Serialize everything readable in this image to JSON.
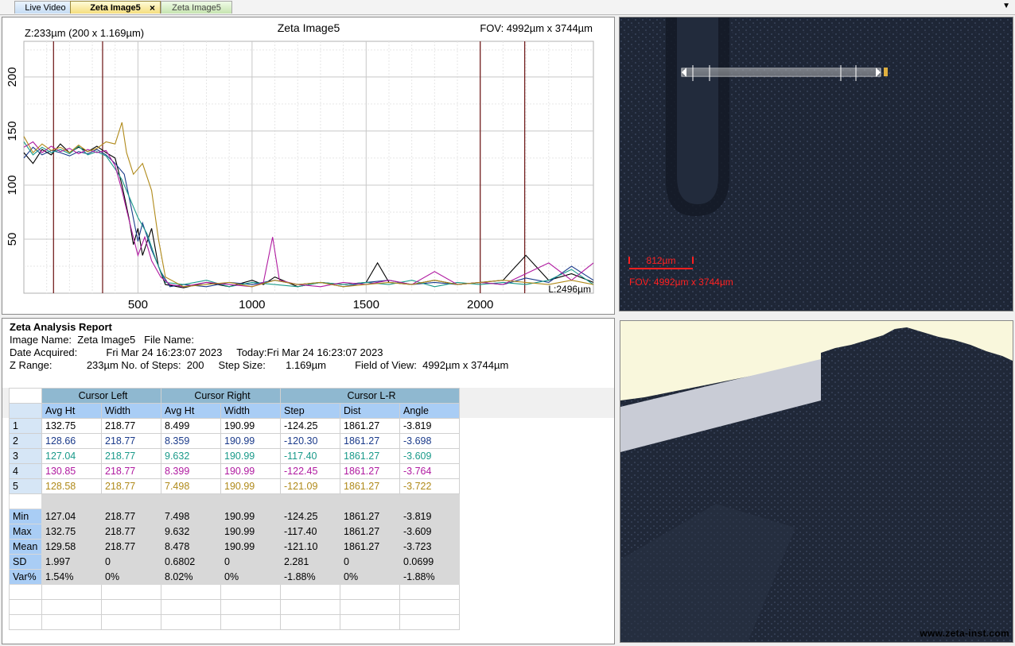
{
  "tabs": [
    {
      "label": "Live Video"
    },
    {
      "label": "Zeta Image5",
      "active": true
    },
    {
      "label": "Zeta Image5"
    }
  ],
  "tab_close_glyph": "×",
  "dropdown_glyph": "▼",
  "profile": {
    "title": "Zeta Image5",
    "zinfo": "Z:233µm (200 x 1.169µm)",
    "fov": "FOV: 4992µm x 3744µm",
    "length_label": "L:2496µm",
    "x_ticks": [
      "500",
      "1000",
      "1500",
      "2000"
    ],
    "y_ticks": [
      "50",
      "100",
      "150",
      "200"
    ]
  },
  "chart_data": {
    "type": "line",
    "x_range": [
      0,
      2496
    ],
    "y_range": [
      0,
      233
    ],
    "cursor_x": [
      130,
      345,
      2000,
      2195
    ],
    "series": [
      {
        "color": "#000000",
        "points": [
          [
            0,
            130
          ],
          [
            40,
            120
          ],
          [
            80,
            133
          ],
          [
            120,
            128
          ],
          [
            160,
            138
          ],
          [
            200,
            130
          ],
          [
            240,
            135
          ],
          [
            280,
            131
          ],
          [
            320,
            136
          ],
          [
            360,
            130
          ],
          [
            400,
            125
          ],
          [
            430,
            100
          ],
          [
            460,
            70
          ],
          [
            480,
            45
          ],
          [
            500,
            60
          ],
          [
            520,
            35
          ],
          [
            560,
            60
          ],
          [
            590,
            25
          ],
          [
            620,
            8
          ],
          [
            700,
            5
          ],
          [
            800,
            10
          ],
          [
            900,
            6
          ],
          [
            1000,
            12
          ],
          [
            1050,
            8
          ],
          [
            1100,
            15
          ],
          [
            1200,
            6
          ],
          [
            1300,
            10
          ],
          [
            1400,
            8
          ],
          [
            1500,
            10
          ],
          [
            1550,
            28
          ],
          [
            1600,
            10
          ],
          [
            1700,
            8
          ],
          [
            1800,
            12
          ],
          [
            1900,
            8
          ],
          [
            2000,
            10
          ],
          [
            2100,
            12
          ],
          [
            2200,
            35
          ],
          [
            2300,
            12
          ],
          [
            2400,
            18
          ],
          [
            2496,
            10
          ]
        ]
      },
      {
        "color": "#1a3a8a",
        "points": [
          [
            0,
            125
          ],
          [
            40,
            135
          ],
          [
            80,
            128
          ],
          [
            120,
            132
          ],
          [
            160,
            130
          ],
          [
            200,
            127
          ],
          [
            240,
            131
          ],
          [
            280,
            129
          ],
          [
            320,
            133
          ],
          [
            360,
            128
          ],
          [
            400,
            120
          ],
          [
            440,
            110
          ],
          [
            470,
            80
          ],
          [
            500,
            48
          ],
          [
            520,
            65
          ],
          [
            560,
            40
          ],
          [
            600,
            20
          ],
          [
            640,
            6
          ],
          [
            700,
            8
          ],
          [
            800,
            6
          ],
          [
            900,
            10
          ],
          [
            1000,
            8
          ],
          [
            1100,
            12
          ],
          [
            1200,
            8
          ],
          [
            1300,
            10
          ],
          [
            1400,
            6
          ],
          [
            1500,
            10
          ],
          [
            1600,
            12
          ],
          [
            1700,
            8
          ],
          [
            1800,
            10
          ],
          [
            1900,
            8
          ],
          [
            2000,
            10
          ],
          [
            2100,
            8
          ],
          [
            2200,
            14
          ],
          [
            2300,
            10
          ],
          [
            2400,
            25
          ],
          [
            2496,
            12
          ]
        ]
      },
      {
        "color": "#1a9a8a",
        "points": [
          [
            0,
            140
          ],
          [
            40,
            128
          ],
          [
            80,
            135
          ],
          [
            120,
            130
          ],
          [
            160,
            133
          ],
          [
            200,
            129
          ],
          [
            240,
            136
          ],
          [
            280,
            128
          ],
          [
            320,
            131
          ],
          [
            360,
            127
          ],
          [
            400,
            115
          ],
          [
            430,
            105
          ],
          [
            460,
            90
          ],
          [
            500,
            70
          ],
          [
            540,
            55
          ],
          [
            580,
            30
          ],
          [
            620,
            10
          ],
          [
            700,
            8
          ],
          [
            800,
            12
          ],
          [
            900,
            6
          ],
          [
            1000,
            10
          ],
          [
            1100,
            8
          ],
          [
            1200,
            6
          ],
          [
            1300,
            10
          ],
          [
            1400,
            8
          ],
          [
            1500,
            10
          ],
          [
            1600,
            8
          ],
          [
            1700,
            12
          ],
          [
            1800,
            6
          ],
          [
            1900,
            10
          ],
          [
            2000,
            8
          ],
          [
            2100,
            10
          ],
          [
            2200,
            8
          ],
          [
            2300,
            12
          ],
          [
            2400,
            22
          ],
          [
            2496,
            8
          ]
        ]
      },
      {
        "color": "#b01aa0",
        "points": [
          [
            0,
            135
          ],
          [
            40,
            140
          ],
          [
            80,
            130
          ],
          [
            120,
            136
          ],
          [
            160,
            131
          ],
          [
            200,
            134
          ],
          [
            240,
            129
          ],
          [
            280,
            133
          ],
          [
            320,
            130
          ],
          [
            360,
            132
          ],
          [
            400,
            118
          ],
          [
            430,
            95
          ],
          [
            470,
            60
          ],
          [
            500,
            35
          ],
          [
            530,
            52
          ],
          [
            560,
            30
          ],
          [
            600,
            15
          ],
          [
            640,
            8
          ],
          [
            700,
            6
          ],
          [
            800,
            10
          ],
          [
            900,
            8
          ],
          [
            1000,
            6
          ],
          [
            1050,
            10
          ],
          [
            1090,
            52
          ],
          [
            1120,
            12
          ],
          [
            1200,
            8
          ],
          [
            1300,
            6
          ],
          [
            1400,
            10
          ],
          [
            1500,
            8
          ],
          [
            1600,
            12
          ],
          [
            1700,
            8
          ],
          [
            1800,
            20
          ],
          [
            1900,
            8
          ],
          [
            2000,
            10
          ],
          [
            2100,
            8
          ],
          [
            2200,
            18
          ],
          [
            2300,
            28
          ],
          [
            2400,
            12
          ],
          [
            2496,
            28
          ]
        ]
      },
      {
        "color": "#b08a1a",
        "points": [
          [
            0,
            145
          ],
          [
            40,
            130
          ],
          [
            80,
            138
          ],
          [
            120,
            132
          ],
          [
            160,
            135
          ],
          [
            200,
            130
          ],
          [
            240,
            137
          ],
          [
            280,
            131
          ],
          [
            320,
            134
          ],
          [
            360,
            140
          ],
          [
            400,
            138
          ],
          [
            430,
            158
          ],
          [
            450,
            130
          ],
          [
            480,
            110
          ],
          [
            520,
            120
          ],
          [
            560,
            95
          ],
          [
            590,
            50
          ],
          [
            620,
            15
          ],
          [
            700,
            6
          ],
          [
            800,
            8
          ],
          [
            900,
            10
          ],
          [
            1000,
            6
          ],
          [
            1100,
            12
          ],
          [
            1200,
            8
          ],
          [
            1300,
            10
          ],
          [
            1400,
            6
          ],
          [
            1500,
            8
          ],
          [
            1600,
            10
          ],
          [
            1700,
            8
          ],
          [
            1800,
            12
          ],
          [
            1900,
            8
          ],
          [
            2000,
            10
          ],
          [
            2100,
            12
          ],
          [
            2200,
            10
          ],
          [
            2300,
            8
          ],
          [
            2400,
            12
          ],
          [
            2496,
            8
          ]
        ]
      }
    ]
  },
  "micro": {
    "scale_label": "812µm",
    "fov_label": "FOV: 4992µm x 3744µm"
  },
  "view3d": {
    "logo": "www.zeta-inst.com"
  },
  "report": {
    "title": "Zeta Analysis Report",
    "line1": "Image Name:  Zeta Image5   File Name:",
    "line2": "Date Acquired:          Fri Mar 24 16:23:07 2023     Today:Fri Mar 24 16:23:07 2023",
    "line3": "Z Range:            233µm No. of Steps:  200     Step Size:       1.169µm          Field of View:  4992µm x 3744µm",
    "groups": [
      "Cursor Left",
      "Cursor Right",
      "Cursor L-R"
    ],
    "subheaders": [
      "Avg Ht",
      "Width",
      "Avg Ht",
      "Width",
      "Step",
      "Dist",
      "Angle"
    ],
    "rows": [
      {
        "id": "1",
        "color": "#000000",
        "values": [
          "132.75",
          "218.77",
          "8.499",
          "190.99",
          "-124.25",
          "1861.27",
          "-3.819"
        ]
      },
      {
        "id": "2",
        "color": "#1a3a8a",
        "values": [
          "128.66",
          "218.77",
          "8.359",
          "190.99",
          "-120.30",
          "1861.27",
          "-3.698"
        ]
      },
      {
        "id": "3",
        "color": "#1a9a8a",
        "values": [
          "127.04",
          "218.77",
          "9.632",
          "190.99",
          "-117.40",
          "1861.27",
          "-3.609"
        ]
      },
      {
        "id": "4",
        "color": "#b01aa0",
        "values": [
          "130.85",
          "218.77",
          "8.399",
          "190.99",
          "-122.45",
          "1861.27",
          "-3.764"
        ]
      },
      {
        "id": "5",
        "color": "#b08a1a",
        "values": [
          "128.58",
          "218.77",
          "7.498",
          "190.99",
          "-121.09",
          "1861.27",
          "-3.722"
        ]
      }
    ],
    "stats": [
      {
        "label": "Min",
        "values": [
          "127.04",
          "218.77",
          "7.498",
          "190.99",
          "-124.25",
          "1861.27",
          "-3.819"
        ]
      },
      {
        "label": "Max",
        "values": [
          "132.75",
          "218.77",
          "9.632",
          "190.99",
          "-117.40",
          "1861.27",
          "-3.609"
        ]
      },
      {
        "label": "Mean",
        "values": [
          "129.58",
          "218.77",
          "8.478",
          "190.99",
          "-121.10",
          "1861.27",
          "-3.723"
        ]
      },
      {
        "label": "SD",
        "values": [
          "1.997",
          "0",
          "0.6802",
          "0",
          "2.281",
          "0",
          "0.0699"
        ]
      },
      {
        "label": "Var%",
        "values": [
          "1.54%",
          "0%",
          "8.02%",
          "0%",
          "-1.88%",
          "0%",
          "-1.88%"
        ]
      }
    ]
  }
}
